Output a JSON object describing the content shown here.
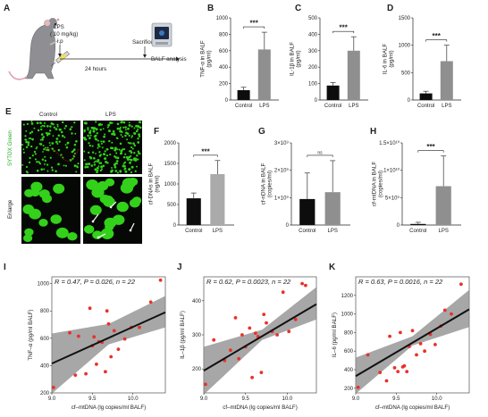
{
  "panel_letters": [
    "A",
    "B",
    "C",
    "D",
    "E",
    "F",
    "G",
    "H",
    "I",
    "J",
    "K"
  ],
  "schematic": {
    "lps_label": "LPS",
    "dose_label": "( 10 mg/kg)",
    "route_label": "i.p",
    "interval_label": "24 hours",
    "sacrifice_label": "Sacrifice",
    "analysis_label": "BALF analysis"
  },
  "microscopy": {
    "col_control": "Control",
    "col_lps": "LPS",
    "stain_label": "SYTOX Green",
    "enlarge_label": "Enlarge"
  },
  "colors": {
    "control_bar": "#0d0d0d",
    "lps_bar": "#8f8f8f",
    "cfdna_lps_bar": "#aaaaaa",
    "fluor_green": "#33d11a",
    "scatter_point": "#e8312a",
    "ci_band": "#8a8a8a"
  },
  "chart_data": [
    {
      "id": "B",
      "type": "bar",
      "categories": [
        "Control",
        "LPS"
      ],
      "values": [
        120,
        615
      ],
      "errors": [
        35,
        210
      ],
      "ylabel": "TNF-α in BALF\n(pg/ml)",
      "ylim": [
        0,
        1000
      ],
      "yticks": [
        "0",
        "200",
        "400",
        "600",
        "800",
        "1000"
      ],
      "significance": "***"
    },
    {
      "id": "C",
      "type": "bar",
      "categories": [
        "Control",
        "LPS"
      ],
      "values": [
        88,
        300
      ],
      "errors": [
        18,
        85
      ],
      "ylabel": "IL-1β in BALF\n(pg/ml)",
      "ylim": [
        0,
        500
      ],
      "yticks": [
        "0",
        "100",
        "200",
        "300",
        "400",
        "500"
      ],
      "significance": "***"
    },
    {
      "id": "D",
      "type": "bar",
      "categories": [
        "Control",
        "LPS"
      ],
      "values": [
        120,
        710
      ],
      "errors": [
        40,
        290
      ],
      "ylabel": "IL-6 in BALF\n(pg/ml)",
      "ylim": [
        0,
        1500
      ],
      "yticks": [
        "0",
        "500",
        "1000",
        "1500"
      ],
      "significance": "***"
    },
    {
      "id": "F",
      "type": "bar",
      "categories": [
        "Control",
        "LPS"
      ],
      "values": [
        650,
        1240
      ],
      "errors": [
        130,
        330
      ],
      "ylabel": "cf-DNAs in BALF\n(ng/ml)",
      "ylim": [
        0,
        2000
      ],
      "yticks": [
        "0",
        "500",
        "1000",
        "1500",
        "2000"
      ],
      "significance": "***"
    },
    {
      "id": "G",
      "type": "bar",
      "categories": [
        "Control",
        "LPS"
      ],
      "values": [
        950000000.0,
        1200000000.0
      ],
      "errors": [
        950000000.0,
        1150000000.0
      ],
      "ylabel": "cf-nDNA in BALF\n(copies/ml)",
      "ylim": [
        0,
        3000000000.0
      ],
      "yticks": [
        "0",
        "1×10⁹",
        "2×10⁹",
        "3×10⁹"
      ],
      "significance": "ns"
    },
    {
      "id": "H",
      "type": "bar",
      "categories": [
        "Control",
        "LPS"
      ],
      "values": [
        200000000.0,
        7100000000.0
      ],
      "errors": [
        300000000.0,
        5500000000.0
      ],
      "ylabel": "cf-mtDNA in BALF\n(copies/ml)",
      "ylim": [
        0,
        15000000000.0
      ],
      "yticks": [
        "0",
        "5×10⁹",
        "1×10¹⁰",
        "1.5×10¹⁰"
      ],
      "significance": "***"
    },
    {
      "id": "I",
      "type": "scatter",
      "xlabel": "cf–mtDNA (lg copies/ml BALF)",
      "ylabel": "TNF–α (pg/ml BALF)",
      "xlim": [
        9.0,
        10.4
      ],
      "ylim": [
        200,
        1050
      ],
      "xticks": [
        "9.0",
        "9.5",
        "10.0"
      ],
      "yticks": [
        "200",
        "400",
        "600",
        "800",
        "1000"
      ],
      "annotation": "R = 0.47, P = 0.026, n = 22",
      "x": [
        9.02,
        9.22,
        9.29,
        9.33,
        9.42,
        9.47,
        9.5,
        9.52,
        9.55,
        9.58,
        9.62,
        9.66,
        9.68,
        9.7,
        9.73,
        9.77,
        9.82,
        9.9,
        9.98,
        10.08,
        10.22,
        10.34
      ],
      "y": [
        240,
        640,
        330,
        615,
        340,
        820,
        545,
        610,
        410,
        575,
        570,
        355,
        800,
        705,
        465,
        655,
        520,
        595,
        680,
        680,
        865,
        1025
      ],
      "fit": [
        [
          9.0,
          415
        ],
        [
          10.4,
          790
        ]
      ],
      "band": [
        [
          9.0,
          195,
          635
        ],
        [
          9.7,
          555,
          705
        ],
        [
          10.4,
          680,
          910
        ]
      ]
    },
    {
      "id": "J",
      "type": "scatter",
      "xlabel": "cf–mtDNA (lg copies/ml BALF)",
      "ylabel": "IL–1β (pg/ml BALF)",
      "xlim": [
        9.0,
        10.35
      ],
      "ylim": [
        130,
        470
      ],
      "xticks": [
        "9.0",
        "9.5",
        "10.0"
      ],
      "yticks": [
        "200",
        "300",
        "400"
      ],
      "annotation": "R = 0.62, P = 0.0023, n = 22",
      "x": [
        9.02,
        9.12,
        9.25,
        9.32,
        9.38,
        9.42,
        9.46,
        9.5,
        9.55,
        9.58,
        9.62,
        9.65,
        9.69,
        9.72,
        9.75,
        9.82,
        9.88,
        9.95,
        10.02,
        10.1,
        10.18,
        10.22
      ],
      "y": [
        155,
        285,
        225,
        255,
        350,
        230,
        300,
        265,
        320,
        175,
        305,
        295,
        190,
        360,
        335,
        310,
        300,
        425,
        310,
        345,
        450,
        445
      ],
      "fit": [
        [
          9.0,
          195
        ],
        [
          10.35,
          390
        ]
      ],
      "band": [
        [
          9.0,
          125,
          265
        ],
        [
          9.7,
          285,
          315
        ],
        [
          10.35,
          345,
          440
        ]
      ]
    },
    {
      "id": "K",
      "type": "scatter",
      "xlabel": "cf–mtDNA (lg copies/ml BALF)",
      "ylabel": "IL–6 (pg/ml BALF)",
      "xlim": [
        9.0,
        10.4
      ],
      "ylim": [
        150,
        1400
      ],
      "xticks": [
        "9.0",
        "9.5",
        "10.0"
      ],
      "yticks": [
        "200",
        "400",
        "600",
        "800",
        "1000",
        "1200"
      ],
      "annotation": "R = 0.63, P = 0.0016, n = 22",
      "x": [
        9.03,
        9.15,
        9.3,
        9.38,
        9.42,
        9.48,
        9.52,
        9.55,
        9.58,
        9.6,
        9.63,
        9.66,
        9.7,
        9.75,
        9.8,
        9.85,
        9.92,
        9.98,
        10.05,
        10.1,
        10.18,
        10.3
      ],
      "y": [
        210,
        560,
        370,
        280,
        760,
        420,
        380,
        800,
        430,
        440,
        380,
        650,
        820,
        560,
        680,
        600,
        780,
        670,
        870,
        1040,
        1000,
        1320
      ],
      "fit": [
        [
          9.0,
          330
        ],
        [
          10.4,
          1050
        ]
      ],
      "band": [
        [
          9.0,
          140,
          530
        ],
        [
          9.7,
          660,
          760
        ],
        [
          10.4,
          860,
          1260
        ]
      ]
    }
  ]
}
